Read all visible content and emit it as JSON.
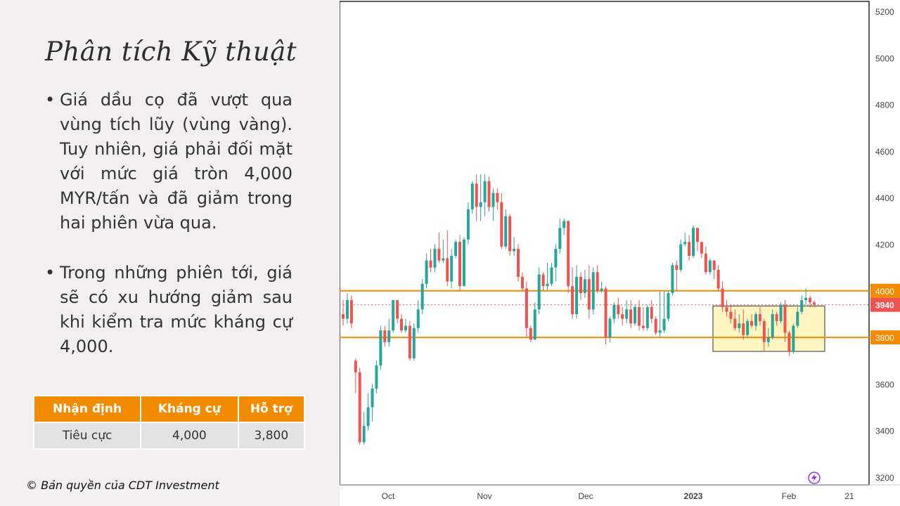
{
  "title": "Phân tích Kỹ thuật",
  "bullets": [
    "Giá dầu cọ đã vượt qua vùng tích lũy (vùng vàng). Tuy nhiên, giá phải đối mặt với mức giá tròn 4,000 MYR/tấn và đã giảm trong hai phiên vừa qua.",
    "Trong những phiên tới, giá sẽ có xu hướng giảm sau khi kiểm tra mức kháng cự 4,000."
  ],
  "bullet_glyph": "•",
  "table": {
    "headers": [
      "Nhận định",
      "Kháng cự",
      "Hỗ trợ"
    ],
    "row": [
      "Tiêu cực",
      "4,000",
      "3,800"
    ]
  },
  "copyright": "© Bản quyền của CDT Investment",
  "colors": {
    "up": "#26a69a",
    "down": "#ef5350",
    "orange": "#f28b00",
    "zone": "#fff5c2",
    "header": "#f28b00"
  },
  "chart_data": {
    "type": "candlestick",
    "ylim": [
      3200,
      5200
    ],
    "y_ticks": [
      3200,
      3400,
      3600,
      3800,
      4000,
      4200,
      4400,
      4600,
      4800,
      5000,
      5200
    ],
    "x_labels": [
      "Oct",
      "Nov",
      "Dec",
      "2023",
      "Feb",
      "21"
    ],
    "horizontal_lines": [
      {
        "value": 4000,
        "label": "4000",
        "color": "#f28b00"
      },
      {
        "value": 3800,
        "label": "3800",
        "color": "#f28b00"
      }
    ],
    "last_price": {
      "value": 3940,
      "label": "3940",
      "color": "#ef5350"
    },
    "zone": {
      "y_from": 3740,
      "y_to": 3935,
      "color": "#fff5c2",
      "period": "2023 to Feb"
    },
    "icon": "lightning-icon",
    "candles": [
      [
        3900,
        3880,
        3960,
        3850
      ],
      [
        3880,
        3960,
        3990,
        3860
      ],
      [
        3960,
        3860,
        3980,
        3840
      ],
      [
        3700,
        3650,
        3710,
        3560
      ],
      [
        3650,
        3350,
        3670,
        3340
      ],
      [
        3350,
        3420,
        3480,
        3340
      ],
      [
        3420,
        3500,
        3560,
        3400
      ],
      [
        3500,
        3580,
        3600,
        3440
      ],
      [
        3580,
        3680,
        3700,
        3560
      ],
      [
        3680,
        3830,
        3850,
        3660
      ],
      [
        3830,
        3780,
        3850,
        3760
      ],
      [
        3780,
        3830,
        3880,
        3760
      ],
      [
        3830,
        3960,
        3960,
        3820
      ],
      [
        3960,
        3880,
        3960,
        3860
      ],
      [
        3880,
        3830,
        3900,
        3820
      ],
      [
        3830,
        3850,
        3880,
        3820
      ],
      [
        3850,
        3710,
        3870,
        3700
      ],
      [
        3710,
        3840,
        3860,
        3700
      ],
      [
        3840,
        3920,
        3960,
        3820
      ],
      [
        3920,
        4030,
        4050,
        3900
      ],
      [
        4030,
        4130,
        4160,
        4010
      ],
      [
        4130,
        4100,
        4180,
        4080
      ],
      [
        4100,
        4180,
        4200,
        4080
      ],
      [
        4180,
        4130,
        4250,
        4120
      ],
      [
        4130,
        4140,
        4220,
        4120
      ],
      [
        4140,
        4040,
        4260,
        4020
      ],
      [
        4040,
        4150,
        4180,
        4010
      ],
      [
        4150,
        4210,
        4220,
        4140
      ],
      [
        4210,
        4020,
        4240,
        4000
      ],
      [
        4020,
        4220,
        4230,
        4020
      ],
      [
        4220,
        4350,
        4380,
        4200
      ],
      [
        4350,
        4460,
        4470,
        4330
      ],
      [
        4460,
        4360,
        4500,
        4300
      ],
      [
        4360,
        4380,
        4500,
        4300
      ],
      [
        4380,
        4470,
        4500,
        4320
      ],
      [
        4470,
        4360,
        4490,
        4340
      ],
      [
        4360,
        4420,
        4440,
        4300
      ],
      [
        4420,
        4380,
        4440,
        4350
      ],
      [
        4380,
        4190,
        4420,
        4180
      ],
      [
        4190,
        4320,
        4350,
        4180
      ],
      [
        4320,
        4170,
        4330,
        4150
      ],
      [
        4170,
        4180,
        4230,
        4150
      ],
      [
        4180,
        4060,
        4200,
        4040
      ],
      [
        4060,
        4010,
        4080,
        4000
      ],
      [
        4010,
        3840,
        4040,
        3800
      ],
      [
        3840,
        3790,
        3850,
        3780
      ],
      [
        3790,
        3920,
        3950,
        3790
      ],
      [
        3920,
        4070,
        4100,
        3900
      ],
      [
        4070,
        4020,
        4080,
        4000
      ],
      [
        4020,
        4030,
        4120,
        4000
      ],
      [
        4030,
        4100,
        4120,
        4020
      ],
      [
        4100,
        4180,
        4200,
        4040
      ],
      [
        4180,
        4270,
        4310,
        4160
      ],
      [
        4270,
        4300,
        4310,
        4240
      ],
      [
        4300,
        4020,
        4300,
        3990
      ],
      [
        4020,
        3900,
        4100,
        3880
      ],
      [
        3900,
        4060,
        4110,
        3880
      ],
      [
        4060,
        3990,
        4080,
        3960
      ],
      [
        3990,
        4050,
        4090,
        3970
      ],
      [
        4050,
        3920,
        4110,
        3880
      ],
      [
        3920,
        4080,
        4100,
        3900
      ],
      [
        4080,
        4000,
        4110,
        3990
      ],
      [
        4000,
        4010,
        4040,
        3990
      ],
      [
        4010,
        3800,
        4020,
        3770
      ],
      [
        3800,
        3880,
        3890,
        3780
      ],
      [
        3880,
        3940,
        3950,
        3860
      ],
      [
        3940,
        3900,
        3970,
        3880
      ],
      [
        3900,
        3880,
        3930,
        3850
      ],
      [
        3880,
        3920,
        3960,
        3860
      ],
      [
        3920,
        3860,
        3960,
        3840
      ],
      [
        3860,
        3930,
        3940,
        3850
      ],
      [
        3930,
        3850,
        3960,
        3830
      ],
      [
        3850,
        3840,
        3930,
        3830
      ],
      [
        3840,
        3930,
        3940,
        3830
      ],
      [
        3930,
        3880,
        3960,
        3860
      ],
      [
        3880,
        3820,
        3890,
        3810
      ],
      [
        3820,
        3830,
        4000,
        3800
      ],
      [
        3830,
        3880,
        4000,
        3820
      ],
      [
        3880,
        3990,
        4000,
        3870
      ],
      [
        3990,
        4110,
        4120,
        3980
      ],
      [
        4110,
        4090,
        4130,
        4000
      ],
      [
        4090,
        4200,
        4220,
        4080
      ],
      [
        4200,
        4210,
        4250,
        4190
      ],
      [
        4210,
        4150,
        4240,
        4130
      ],
      [
        4150,
        4270,
        4280,
        4140
      ],
      [
        4270,
        4210,
        4270,
        4170
      ],
      [
        4210,
        4160,
        4200,
        4140
      ],
      [
        4160,
        4080,
        4190,
        4070
      ],
      [
        4080,
        4130,
        4140,
        4070
      ],
      [
        4130,
        4090,
        4130,
        4050
      ],
      [
        4090,
        4010,
        4110,
        4000
      ],
      [
        4010,
        3930,
        4040,
        3910
      ],
      [
        3930,
        3910,
        3960,
        3890
      ],
      [
        3910,
        3880,
        3940,
        3860
      ],
      [
        3880,
        3840,
        3920,
        3830
      ],
      [
        3840,
        3860,
        3900,
        3820
      ],
      [
        3860,
        3810,
        3920,
        3790
      ],
      [
        3810,
        3870,
        3880,
        3800
      ],
      [
        3870,
        3850,
        3900,
        3840
      ],
      [
        3850,
        3900,
        3910,
        3830
      ],
      [
        3900,
        3870,
        3930,
        3850
      ],
      [
        3870,
        3780,
        3880,
        3740
      ],
      [
        3780,
        3800,
        3840,
        3760
      ],
      [
        3800,
        3900,
        3920,
        3790
      ],
      [
        3900,
        3870,
        3910,
        3850
      ],
      [
        3870,
        3940,
        3950,
        3860
      ],
      [
        3940,
        3820,
        3960,
        3780
      ],
      [
        3820,
        3740,
        3830,
        3720
      ],
      [
        3740,
        3850,
        3860,
        3730
      ],
      [
        3850,
        3910,
        3930,
        3840
      ],
      [
        3910,
        3960,
        3980,
        3900
      ],
      [
        3960,
        3970,
        4010,
        3940
      ],
      [
        3970,
        3950,
        3980,
        3930
      ],
      [
        3950,
        3940,
        3960,
        3930
      ]
    ]
  }
}
